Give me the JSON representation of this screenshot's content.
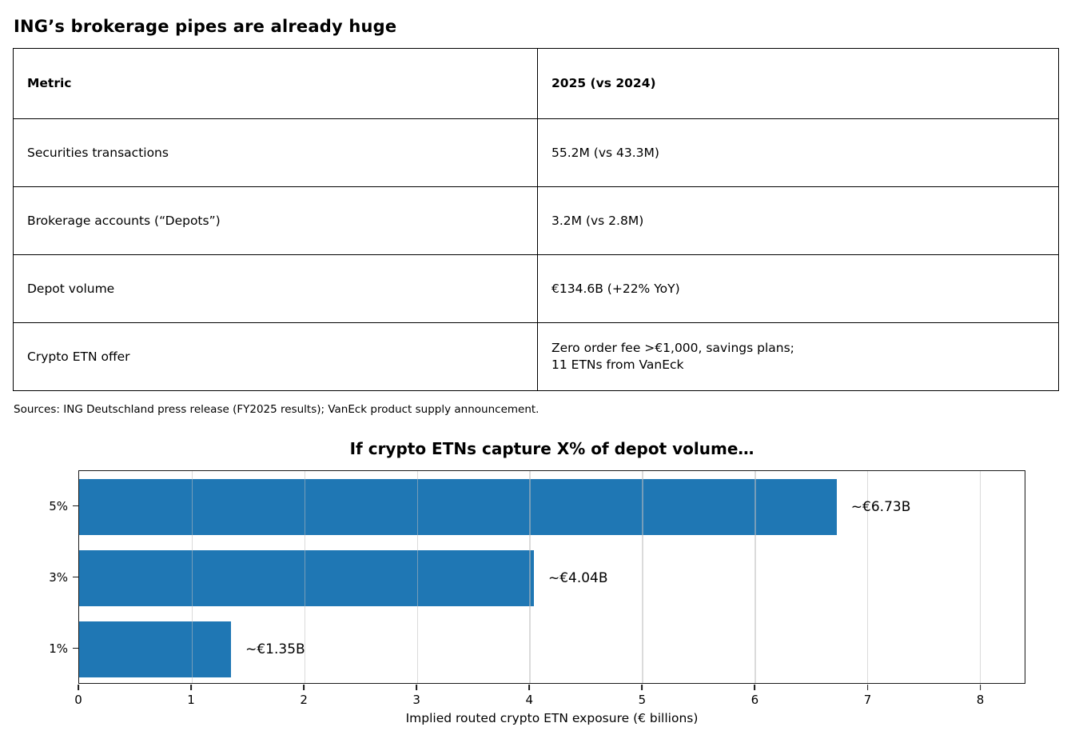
{
  "page_title": "ING’s brokerage pipes are already huge",
  "table": {
    "columns": {
      "metric": "Metric",
      "period": "2025 (vs 2024)"
    },
    "rows": [
      {
        "metric": "Securities transactions",
        "value": "55.2M (vs 43.3M)"
      },
      {
        "metric": "Brokerage accounts (“Depots”)",
        "value": "3.2M (vs 2.8M)"
      },
      {
        "metric": "Depot volume",
        "value": "€134.6B (+22% YoY)"
      },
      {
        "metric": "Crypto ETN offer",
        "value": "Zero order fee >€1,000, savings plans;\n11 ETNs from VanEck"
      }
    ]
  },
  "sources_note": "Sources: ING Deutschland press release (FY2025 results); VanEck product supply announcement.",
  "chart_data": {
    "type": "bar",
    "orientation": "horizontal",
    "title": "If crypto ETNs capture X% of depot volume…",
    "categories": [
      "5%",
      "3%",
      "1%"
    ],
    "values": [
      6.73,
      4.04,
      1.35
    ],
    "bar_labels": [
      "~€6.73B",
      "~€4.04B",
      "~€1.35B"
    ],
    "xlabel": "Implied routed crypto ETN exposure (€ billions)",
    "ylabel": "",
    "xlim": [
      0,
      8.4
    ],
    "xticks": [
      0,
      1,
      2,
      3,
      4,
      5,
      6,
      7,
      8
    ],
    "grid": true,
    "legend": null,
    "bar_color": "#1f77b4"
  }
}
